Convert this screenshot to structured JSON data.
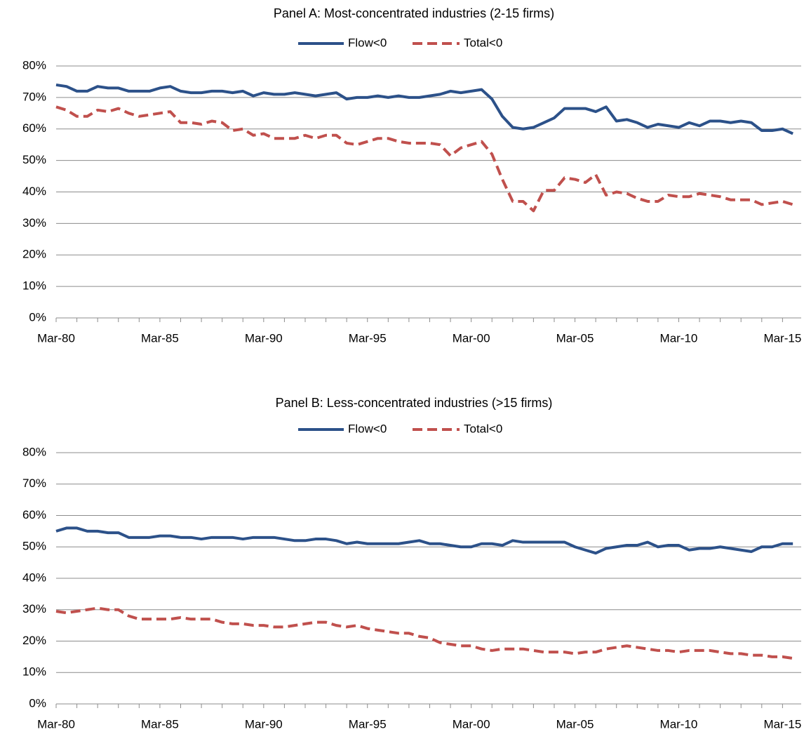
{
  "chart_data": [
    {
      "type": "line",
      "title": "Panel A: Most-concentrated industries (2-15 firms)",
      "categories": [
        "Mar-80",
        null,
        null,
        null,
        null,
        null,
        null,
        null,
        null,
        null,
        "Mar-85",
        null,
        null,
        null,
        null,
        null,
        null,
        null,
        null,
        null,
        "Mar-90",
        null,
        null,
        null,
        null,
        null,
        null,
        null,
        null,
        null,
        "Mar-95",
        null,
        null,
        null,
        null,
        null,
        null,
        null,
        null,
        null,
        "Mar-00",
        null,
        null,
        null,
        null,
        null,
        null,
        null,
        null,
        null,
        "Mar-05",
        null,
        null,
        null,
        null,
        null,
        null,
        null,
        null,
        null,
        "Mar-10",
        null,
        null,
        null,
        null,
        null,
        null,
        null,
        null,
        null,
        "Mar-15",
        null
      ],
      "series": [
        {
          "name": "Flow<0",
          "color": "#2c5189",
          "dash": false,
          "values": [
            74,
            73.5,
            72,
            72,
            73.5,
            73,
            73,
            72,
            72,
            72,
            73,
            73.5,
            72,
            71.5,
            71.5,
            72,
            72,
            71.5,
            72,
            70.5,
            71.5,
            71,
            71,
            71.5,
            71,
            70.5,
            71,
            71.5,
            69.5,
            70,
            70,
            70.5,
            70,
            70.5,
            70,
            70,
            70.5,
            71,
            72,
            71.5,
            72,
            72.5,
            69.5,
            64,
            60.5,
            60,
            60.5,
            62,
            63.5,
            66.5,
            66.5,
            66.5,
            65.5,
            67,
            62.5,
            63,
            62,
            60.5,
            61.5,
            61,
            60.5,
            62,
            61,
            62.5,
            62.5,
            62,
            62.5,
            62,
            59.5,
            59.5,
            60,
            58.5
          ]
        },
        {
          "name": "Total<0",
          "color": "#c0504d",
          "dash": true,
          "values": [
            67,
            66,
            64,
            64,
            66,
            65.5,
            66.5,
            65,
            64,
            64.5,
            65,
            65.5,
            62,
            62,
            61.5,
            62.5,
            62,
            59.5,
            60,
            58,
            58.5,
            57,
            57,
            57,
            58,
            57,
            58,
            58,
            55.5,
            55,
            56,
            57,
            57,
            56,
            55.5,
            55.5,
            55.5,
            55,
            51.5,
            54,
            55,
            56,
            52,
            44,
            37,
            37,
            34,
            40.5,
            40.5,
            44.5,
            44,
            43,
            45.5,
            39,
            40,
            39.5,
            38,
            37,
            37,
            39,
            38.5,
            38.5,
            39.5,
            39,
            38.5,
            37.5,
            37.5,
            37.5,
            36,
            36.5,
            37,
            36
          ]
        }
      ],
      "ylim": [
        0,
        80
      ],
      "yticks": [
        {
          "value": 0,
          "label": "0%"
        },
        {
          "value": 10,
          "label": "10%"
        },
        {
          "value": 20,
          "label": "20%"
        },
        {
          "value": 30,
          "label": "30%"
        },
        {
          "value": 40,
          "label": "40%"
        },
        {
          "value": 50,
          "label": "50%"
        },
        {
          "value": 60,
          "label": "60%"
        },
        {
          "value": 70,
          "label": "70%"
        },
        {
          "value": 80,
          "label": "80%"
        }
      ],
      "grid": true
    },
    {
      "type": "line",
      "title": "Panel B: Less-concentrated industries (>15 firms)",
      "categories": [
        "Mar-80",
        null,
        null,
        null,
        null,
        null,
        null,
        null,
        null,
        null,
        "Mar-85",
        null,
        null,
        null,
        null,
        null,
        null,
        null,
        null,
        null,
        "Mar-90",
        null,
        null,
        null,
        null,
        null,
        null,
        null,
        null,
        null,
        "Mar-95",
        null,
        null,
        null,
        null,
        null,
        null,
        null,
        null,
        null,
        "Mar-00",
        null,
        null,
        null,
        null,
        null,
        null,
        null,
        null,
        null,
        "Mar-05",
        null,
        null,
        null,
        null,
        null,
        null,
        null,
        null,
        null,
        "Mar-10",
        null,
        null,
        null,
        null,
        null,
        null,
        null,
        null,
        null,
        "Mar-15",
        null
      ],
      "series": [
        {
          "name": "Flow<0",
          "color": "#2c5189",
          "dash": false,
          "values": [
            55,
            56,
            56,
            55,
            55,
            54.5,
            54.5,
            53,
            53,
            53,
            53.5,
            53.5,
            53,
            53,
            52.5,
            53,
            53,
            53,
            52.5,
            53,
            53,
            53,
            52.5,
            52,
            52,
            52.5,
            52.5,
            52,
            51,
            51.5,
            51,
            51,
            51,
            51,
            51.5,
            52,
            51,
            51,
            50.5,
            50,
            50,
            51,
            51,
            50.5,
            52,
            51.5,
            51.5,
            51.5,
            51.5,
            51.5,
            50,
            49,
            48,
            49.5,
            50,
            50.5,
            50.5,
            51.5,
            50,
            50.5,
            50.5,
            49,
            49.5,
            49.5,
            50,
            49.5,
            49,
            48.5,
            50,
            50,
            51,
            51
          ]
        },
        {
          "name": "Total<0",
          "color": "#c0504d",
          "dash": true,
          "values": [
            29.5,
            29,
            29.5,
            30,
            30.5,
            30,
            30,
            28,
            27,
            27,
            27,
            27,
            27.5,
            27,
            27,
            27,
            26,
            25.5,
            25.5,
            25,
            25,
            24.5,
            24.5,
            25,
            25.5,
            26,
            26,
            25,
            24.5,
            25,
            24,
            23.5,
            23,
            22.5,
            22.5,
            21.5,
            21,
            19.5,
            19,
            18.5,
            18.5,
            17.5,
            17,
            17.5,
            17.5,
            17.5,
            17,
            16.5,
            16.5,
            16.5,
            16,
            16.5,
            16.5,
            17.5,
            18,
            18.5,
            18,
            17.5,
            17,
            17,
            16.5,
            17,
            17,
            17,
            16.5,
            16,
            16,
            15.5,
            15.5,
            15,
            15,
            14.5
          ]
        }
      ],
      "ylim": [
        0,
        80
      ],
      "yticks": [
        {
          "value": 0,
          "label": "0%"
        },
        {
          "value": 10,
          "label": "10%"
        },
        {
          "value": 20,
          "label": "20%"
        },
        {
          "value": 30,
          "label": "30%"
        },
        {
          "value": 40,
          "label": "40%"
        },
        {
          "value": 50,
          "label": "50%"
        },
        {
          "value": 60,
          "label": "60%"
        },
        {
          "value": 70,
          "label": "70%"
        },
        {
          "value": 80,
          "label": "80%"
        }
      ],
      "grid": true
    }
  ]
}
